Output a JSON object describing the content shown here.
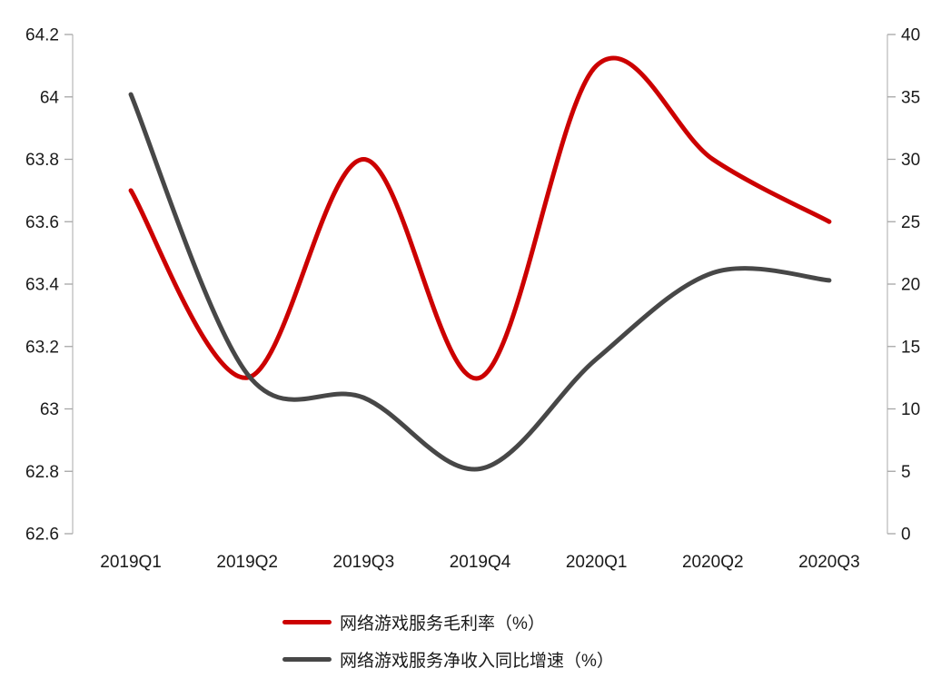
{
  "page": {
    "background": "#ffffff"
  },
  "chart_data": {
    "type": "line",
    "smooth": true,
    "grid": false,
    "legend_position": "bottom",
    "title": "",
    "xlabel": "",
    "ylabel_left": "",
    "ylabel_right": "",
    "categories": [
      "2019Q1",
      "2019Q2",
      "2019Q3",
      "2019Q4",
      "2020Q1",
      "2020Q2",
      "2020Q3"
    ],
    "series": [
      {
        "name": "网络游戏服务毛利率（%）",
        "axis": "left",
        "color": "#cc0000",
        "values": [
          63.7,
          63.1,
          63.8,
          63.1,
          64.1,
          63.8,
          63.6
        ]
      },
      {
        "name": "网络游戏服务净收入同比增速（%）",
        "axis": "right",
        "color": "#474747",
        "values": [
          35.2,
          12.8,
          10.9,
          5.2,
          14.0,
          20.9,
          20.3
        ]
      }
    ],
    "left_axis": {
      "min": 62.6,
      "max": 64.2,
      "step": 0.2,
      "tick_labels": [
        "64.2",
        "64",
        "63.8",
        "63.6",
        "63.4",
        "63.2",
        "63",
        "62.8",
        "62.6"
      ]
    },
    "right_axis": {
      "min": 0,
      "max": 40,
      "step": 5,
      "tick_labels": [
        "40",
        "35",
        "30",
        "25",
        "20",
        "15",
        "10",
        "5",
        "0"
      ]
    },
    "style": {
      "axis_line_color": "#bdbdbd",
      "tick_color": "#a6a6a6",
      "label_color": "#1a1a1a",
      "line_width": 5,
      "tick_font_size": 19,
      "category_font_size": 19
    }
  }
}
